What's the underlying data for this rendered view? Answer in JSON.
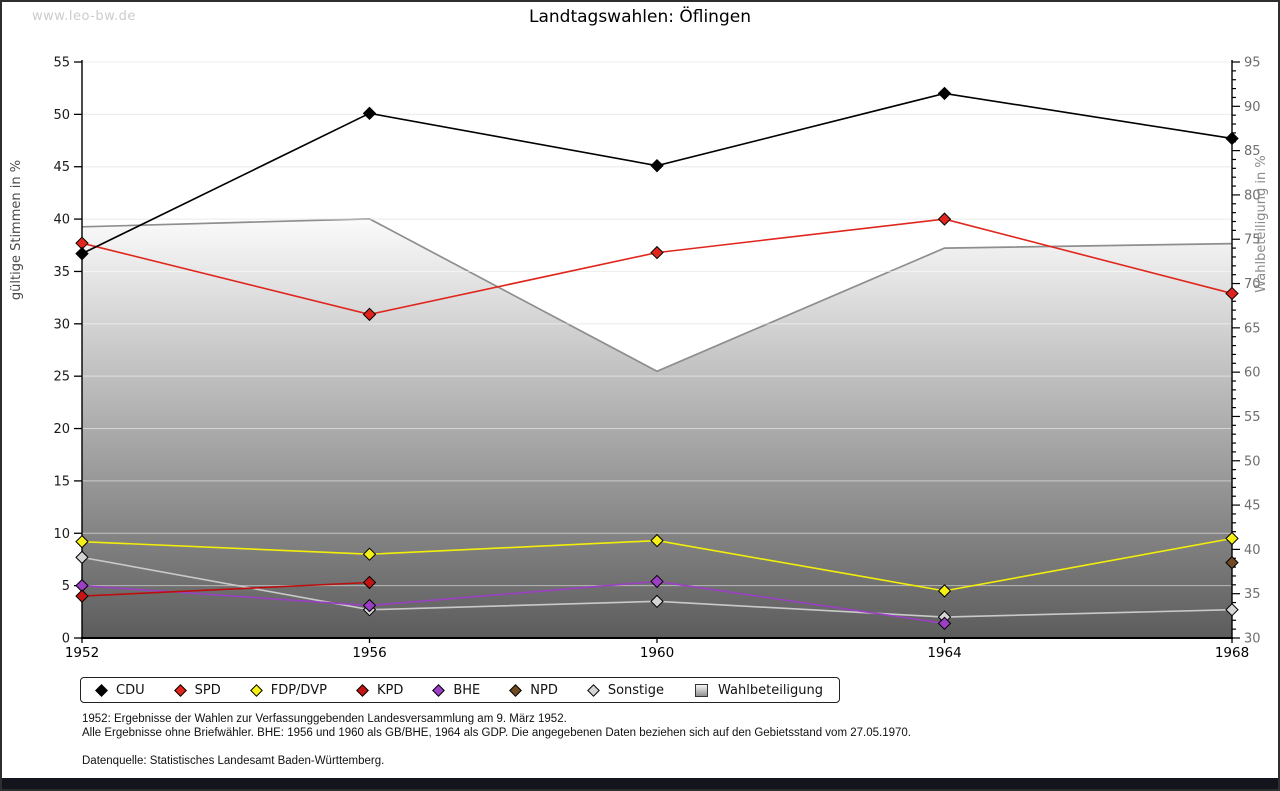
{
  "site": {
    "watermark": "www.leo-bw.de"
  },
  "header": {
    "title": "Landtagswahlen: Öflingen"
  },
  "chart_data": {
    "type": "line",
    "title": "Landtagswahlen: Öflingen",
    "categories": [
      "1952",
      "1956",
      "1960",
      "1964",
      "1968"
    ],
    "left_axis": {
      "label": "gültige Stimmen in %",
      "min": 0,
      "max": 55,
      "major_step": 5
    },
    "right_axis": {
      "label": "Wahlbeteiligung in %",
      "min": 30,
      "max": 95,
      "major_step": 5,
      "minor_step": 1
    },
    "grid": "horizontal",
    "legend_position": "bottom",
    "series": [
      {
        "name": "CDU",
        "axis": "left",
        "marker": "diamond",
        "color": "#000000",
        "marker_fill": "#000000",
        "values": [
          36.7,
          50.1,
          45.1,
          52.0,
          47.7
        ]
      },
      {
        "name": "SPD",
        "axis": "left",
        "marker": "diamond",
        "color": "#e0261c",
        "marker_fill": "#e0261c",
        "values": [
          37.7,
          30.9,
          36.8,
          40.0,
          32.9
        ]
      },
      {
        "name": "FDP/DVP",
        "axis": "left",
        "marker": "diamond",
        "color": "#f2ee0a",
        "marker_fill": "#f5f116",
        "values": [
          9.2,
          8.0,
          9.3,
          4.5,
          9.5
        ]
      },
      {
        "name": "KPD",
        "axis": "left",
        "marker": "diamond",
        "color": "#bd0e0e",
        "marker_fill": "#c41414",
        "values": [
          4.0,
          5.3,
          null,
          null,
          null
        ]
      },
      {
        "name": "BHE",
        "axis": "left",
        "marker": "diamond",
        "color": "#9b3fc4",
        "marker_fill": "#9b3fc4",
        "values": [
          5.0,
          3.1,
          5.4,
          1.4,
          null
        ]
      },
      {
        "name": "NPD",
        "axis": "left",
        "marker": "diamond",
        "color": "#6f4a22",
        "marker_fill": "#6f4a22",
        "values": [
          null,
          null,
          null,
          null,
          7.2
        ]
      },
      {
        "name": "Sonstige",
        "axis": "left",
        "marker": "diamond",
        "color": "#c9c9c9",
        "marker_fill": "#d4d4d4",
        "values": [
          7.7,
          2.7,
          3.5,
          2.0,
          2.7
        ]
      },
      {
        "name": "Wahlbeteiligung",
        "axis": "right",
        "marker": "square",
        "color": "#8e8e8e",
        "type": "area",
        "area_gradient": [
          "#fbfbfb",
          "#5c5c5c"
        ],
        "values": [
          76.4,
          77.3,
          60.1,
          74.0,
          74.5
        ]
      }
    ]
  },
  "footer": {
    "note1": "1952: Ergebnisse der Wahlen zur Verfassunggebenden Landesversammlung am 9. März 1952.",
    "note2": "Alle Ergebnisse ohne Briefwähler. BHE: 1956 und 1960 als GB/BHE, 1964 als GDP. Die angegebenen Daten beziehen sich auf den Gebietsstand vom 27.05.1970.",
    "source": "Datenquelle: Statistisches Landesamt Baden-Württemberg."
  }
}
